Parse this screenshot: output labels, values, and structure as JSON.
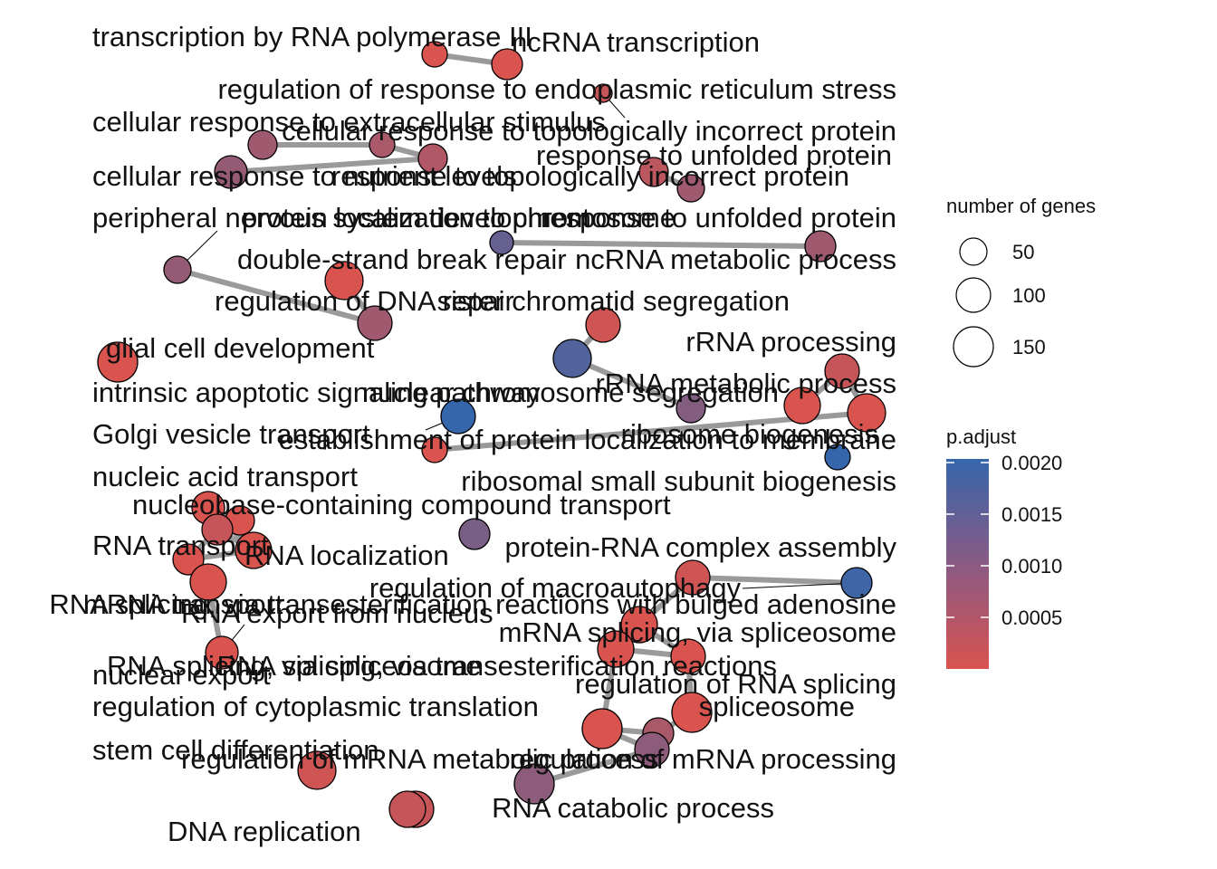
{
  "legend": {
    "size_title": "number of genes",
    "size_items": [
      "50",
      "100",
      "150"
    ],
    "color_title": "p.adjust",
    "color_ticks": [
      "0.0020",
      "0.0015",
      "0.0010",
      "0.0005"
    ],
    "color_high": "#3566AB",
    "color_low": "#D9534F"
  },
  "nodes": [
    {
      "label": "transcription by RNA polymerase III",
      "padj": 0.0003
    },
    {
      "label": "ncRNA transcription",
      "padj": 0.0002
    },
    {
      "label": "regulation of response to endoplasmic reticulum stress",
      "padj": 0.0005
    },
    {
      "label": "cellular response to extracellular stimulus",
      "padj": 0.0009
    },
    {
      "label": "cellular response to topologically incorrect protein",
      "padj": 0.0008
    },
    {
      "label": "response to unfolded protein",
      "padj": 0.0007
    },
    {
      "label": "cellular response to nutrient levels",
      "padj": 0.001
    },
    {
      "label": "response to topologically incorrect protein",
      "padj": 0.0006
    },
    {
      "label": "peripheral nervous system development",
      "padj": 0.001
    },
    {
      "label": "protein localization to chromosome",
      "padj": 0.0015
    },
    {
      "label": "response to unfolded protein",
      "padj": 0.0009
    },
    {
      "label": "double-strand break repair",
      "padj": 0.0003
    },
    {
      "label": "ncRNA metabolic process",
      "padj": 0.0009
    },
    {
      "label": "regulation of DNA repair",
      "padj": 0.0009
    },
    {
      "label": "sister chromatid segregation",
      "padj": 0.0004
    },
    {
      "label": "rRNA processing",
      "padj": 0.0005
    },
    {
      "label": "glial cell development",
      "padj": 0.0003
    },
    {
      "label": "rRNA metabolic process",
      "padj": 0.0017
    },
    {
      "label": "intrinsic apoptotic signaling pathway",
      "padj": 0.0003
    },
    {
      "label": "nuclear chromosome segregation",
      "padj": 0.0012
    },
    {
      "label": "Golgi vesicle transport",
      "padj": 0.002
    },
    {
      "label": "ribosome biogenesis",
      "padj": 0.0003
    },
    {
      "label": "establishment of protein localization to membrane",
      "padj": 0.0003
    },
    {
      "label": "ribosomal small subunit biogenesis",
      "padj": 0.002
    },
    {
      "label": "nucleic acid transport",
      "padj": 0.0003
    },
    {
      "label": "nucleobase-containing compound transport",
      "padj": 0.0003
    },
    {
      "label": "RNA transport",
      "padj": 0.0005
    },
    {
      "label": "protein-RNA complex assembly",
      "padj": 0.0013
    },
    {
      "label": "RNA localization",
      "padj": 0.0003
    },
    {
      "label": "mRNA transport",
      "padj": 0.0003
    },
    {
      "label": "regulation of macroautophagy",
      "padj": 0.0004
    },
    {
      "label": "mRNA splicing, via spliceosome",
      "padj": 0.0003
    },
    {
      "label": "RNA export from nucleus",
      "padj": 0.0003
    },
    {
      "label": "RNA splicing, via transesterification reactions with bulged adenosine",
      "padj": 0.0019
    },
    {
      "label": "RNA splicing, via spliceosome",
      "padj": 0.0003
    },
    {
      "label": "RNA splicing, via transesterification reactions",
      "padj": 0.0003
    },
    {
      "label": "regulation of RNA splicing",
      "padj": 0.0003
    },
    {
      "label": "nuclear export",
      "padj": 0.0003
    },
    {
      "label": "regulation of cytoplasmic translation",
      "padj": 0.0003
    },
    {
      "label": "spliceosome",
      "padj": 0.0008
    },
    {
      "label": "stem cell differentiation",
      "padj": 0.0004
    },
    {
      "label": "regulation of mRNA metabolic process",
      "padj": 0.0011
    },
    {
      "label": "regulation of mRNA processing",
      "padj": 0.0011
    },
    {
      "label": "RNA catabolic process",
      "padj": 0.0005
    },
    {
      "label": "DNA replication",
      "padj": 0.0005
    }
  ]
}
